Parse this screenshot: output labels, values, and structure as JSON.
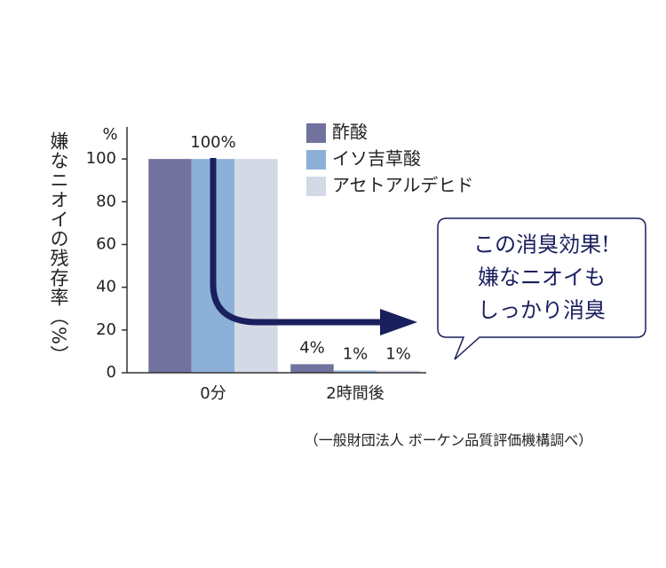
{
  "chart_data": {
    "type": "bar",
    "y_label": "嫌なニオイの残存率（%）",
    "y_unit": "%",
    "categories": [
      "0分",
      "2時間後"
    ],
    "series": [
      {
        "name": "酢酸",
        "color": "#72729f",
        "values": [
          100,
          4
        ],
        "value_labels": [
          null,
          "4%"
        ]
      },
      {
        "name": "イソ吉草酸",
        "color": "#8db0d9",
        "values": [
          100,
          1
        ],
        "value_labels": [
          "100%",
          "1%"
        ]
      },
      {
        "name": "アセトアルデヒド",
        "color": "#d4d9e6",
        "values": [
          100,
          1
        ],
        "value_labels": [
          null,
          "1%"
        ]
      }
    ],
    "ylim": [
      0,
      115
    ],
    "yticks": [
      0,
      20,
      40,
      60,
      80,
      100
    ],
    "callout": [
      "この消臭効果!",
      "嫌なニオイも",
      "しっかり消臭"
    ],
    "source": "（一般財団法人 ボーケン品質評価機構調べ）"
  }
}
